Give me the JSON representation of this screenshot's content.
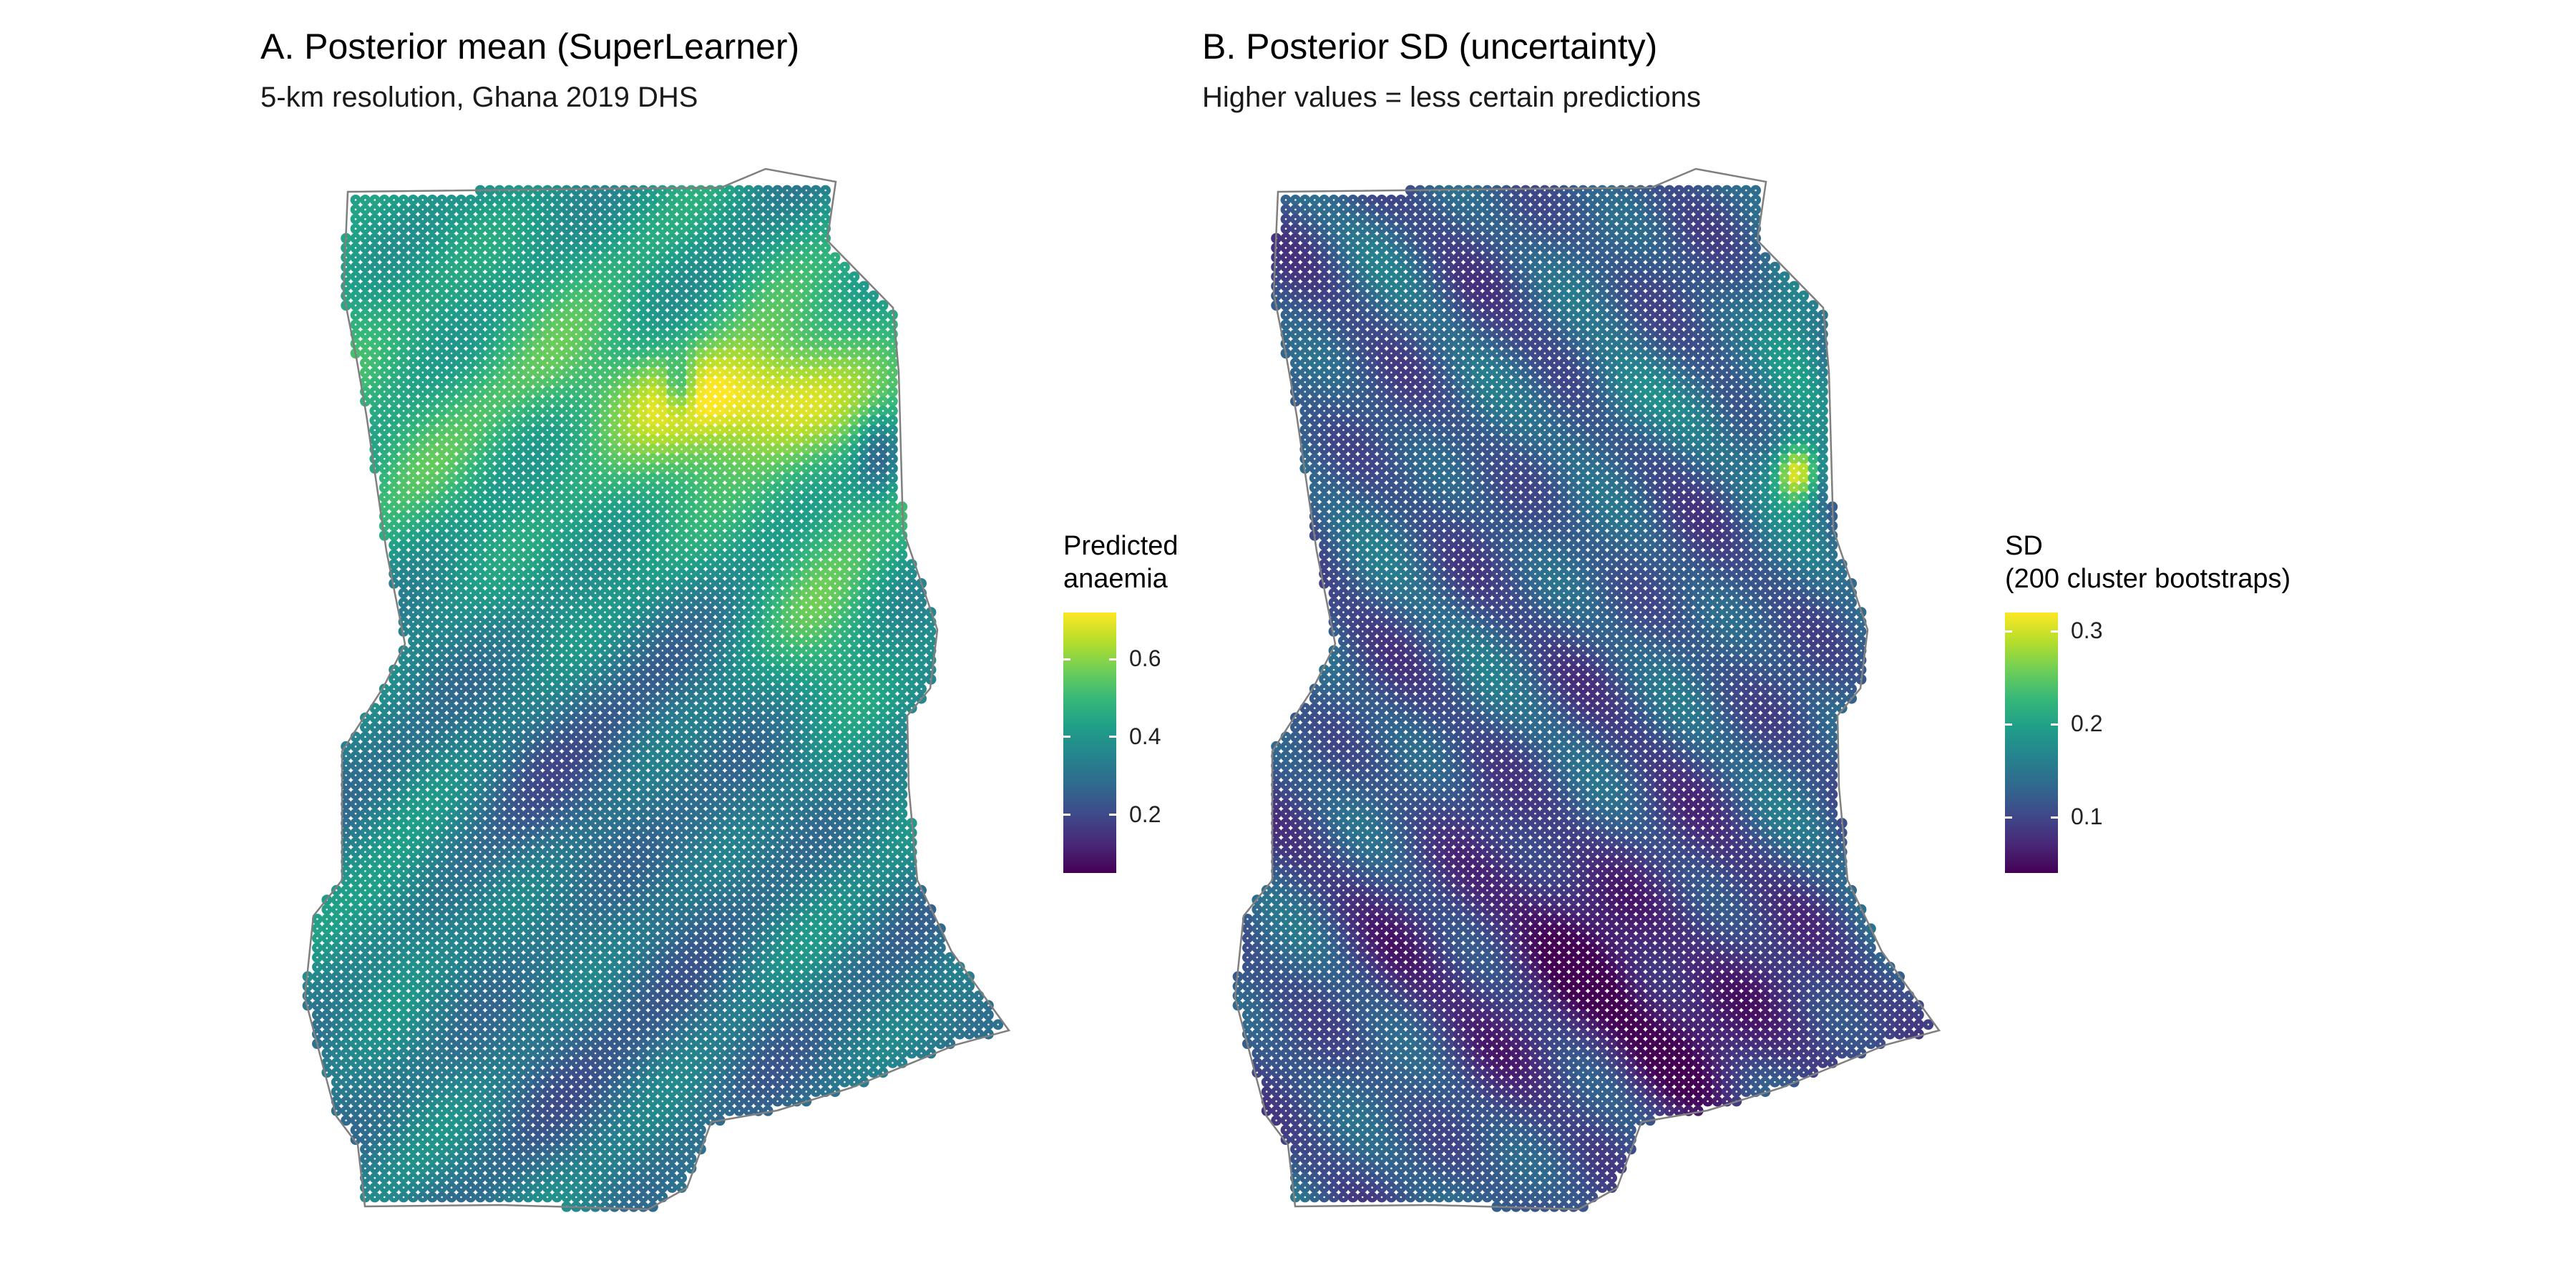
{
  "panels": [
    {
      "id": "mean",
      "title": "A. Posterior mean (SuperLearner)",
      "subtitle": "5-km resolution, Ghana 2019 DHS",
      "legend": {
        "title_line1": "Predicted",
        "title_line2": "anaemia",
        "ticks": [
          {
            "value": 0.6,
            "label": "0.6"
          },
          {
            "value": 0.4,
            "label": "0.4"
          },
          {
            "value": 0.2,
            "label": "0.2"
          }
        ],
        "range": [
          0.05,
          0.72
        ]
      }
    },
    {
      "id": "sd",
      "title": "B. Posterior SD (uncertainty)",
      "subtitle": "Higher values = less certain predictions",
      "legend": {
        "title_line1": "SD",
        "title_line2": "(200 cluster bootstraps)",
        "ticks": [
          {
            "value": 0.3,
            "label": "0.3"
          },
          {
            "value": 0.2,
            "label": "0.2"
          },
          {
            "value": 0.1,
            "label": "0.1"
          }
        ],
        "range": [
          0.04,
          0.32
        ]
      }
    }
  ],
  "colors": {
    "viridis": [
      "#440154",
      "#482878",
      "#3e4989",
      "#31688e",
      "#26828e",
      "#1f9e89",
      "#35b779",
      "#6ece58",
      "#b5de2b",
      "#fde725"
    ],
    "outline": "#7f7f7f",
    "dot": "#ffffff"
  }
}
